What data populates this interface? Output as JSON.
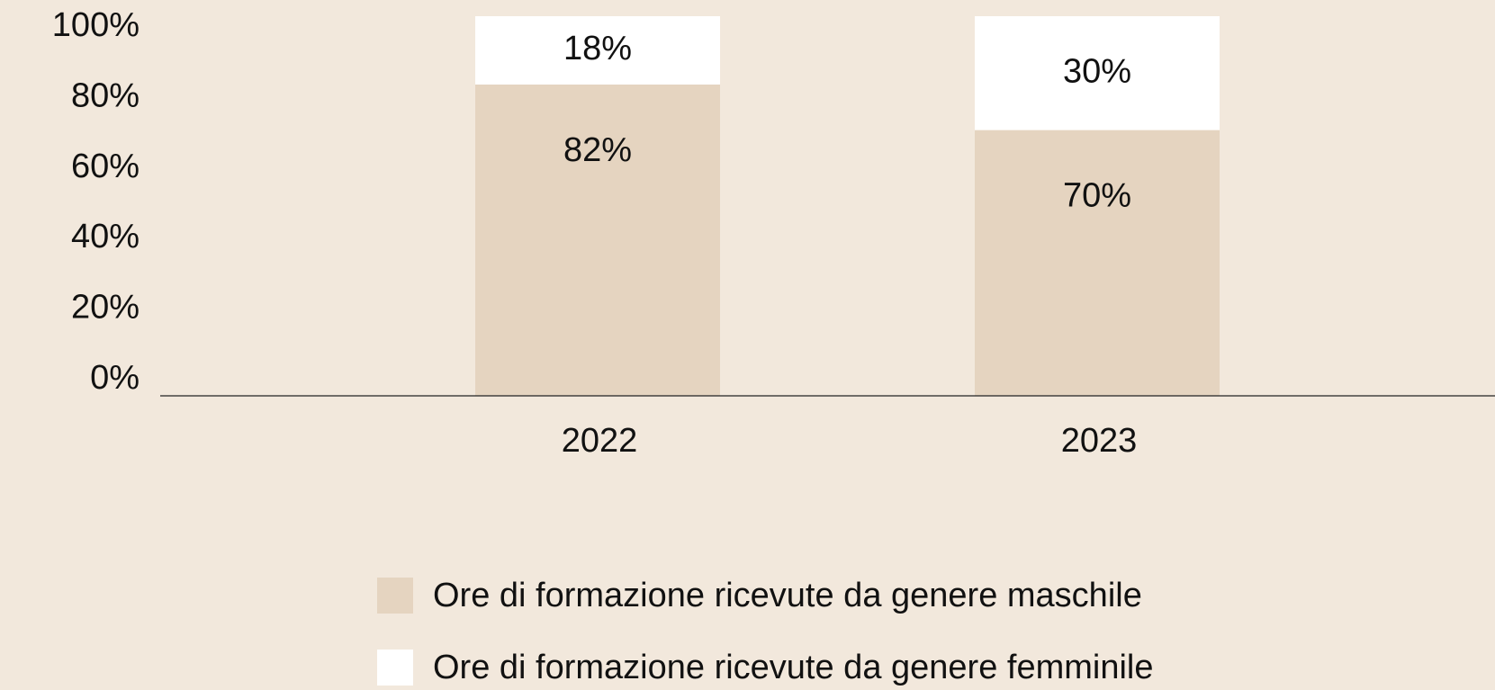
{
  "chart_data": {
    "type": "stacked_bar",
    "categories": [
      "2022",
      "2023"
    ],
    "series": [
      {
        "name": "Ore di formazione ricevute da genere maschile",
        "color": "#e5d4c0",
        "values": [
          82,
          70
        ],
        "value_labels": [
          "82%",
          "70%"
        ]
      },
      {
        "name": "Ore di formazione ricevute da genere femminile",
        "color": "#ffffff",
        "values": [
          18,
          30
        ],
        "value_labels": [
          "18%",
          "30%"
        ]
      }
    ],
    "ylim": [
      0,
      100
    ],
    "yticks": [
      {
        "value": 0,
        "label": "0%"
      },
      {
        "value": 20,
        "label": "20%"
      },
      {
        "value": 40,
        "label": "40%"
      },
      {
        "value": 60,
        "label": "60%"
      },
      {
        "value": 80,
        "label": "80%"
      },
      {
        "value": 100,
        "label": "100%"
      }
    ],
    "grid": false,
    "legend": "bottom"
  }
}
